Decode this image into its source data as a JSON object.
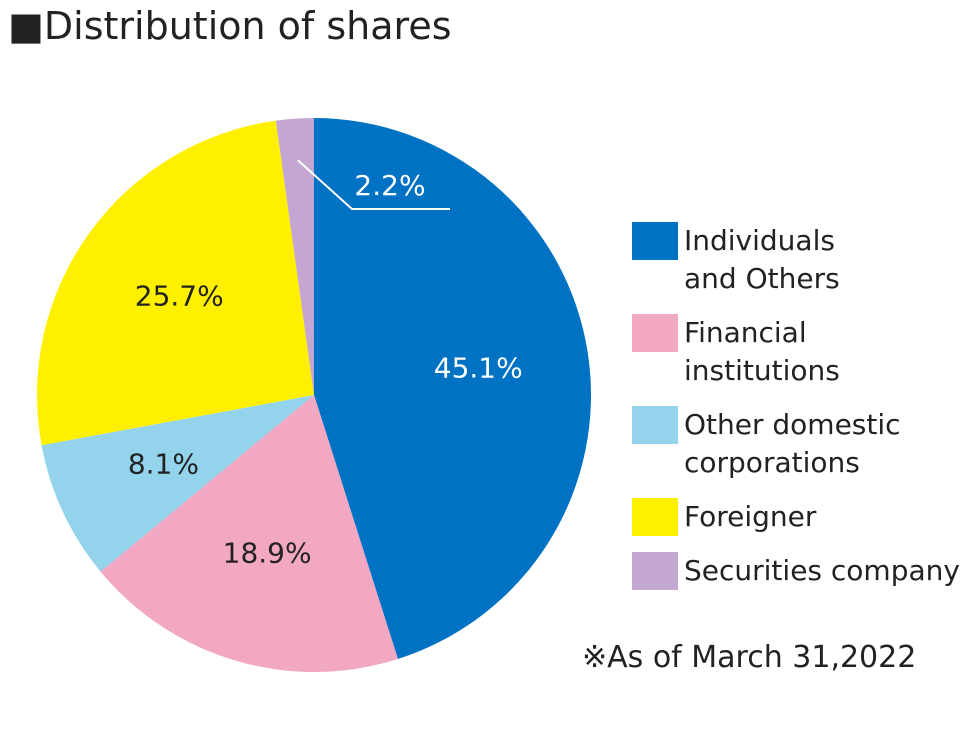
{
  "chart_data": {
    "type": "pie",
    "title": "■Distribution of shares",
    "note": "※As of March 31,2022",
    "categories": [
      "Individuals\nand Others",
      "Financial\ninstitutions",
      "Other domestic\ncorporations",
      "Foreigner",
      "Securities company"
    ],
    "values": [
      45.1,
      18.9,
      8.1,
      25.7,
      2.2
    ],
    "value_labels": [
      "45.1%",
      "18.9%",
      "8.1%",
      "25.7%",
      "2.2%"
    ],
    "colors": [
      "#0072c3",
      "#f2a7c3",
      "#93d3ec",
      "#fff000",
      "#c3a6d2"
    ]
  }
}
